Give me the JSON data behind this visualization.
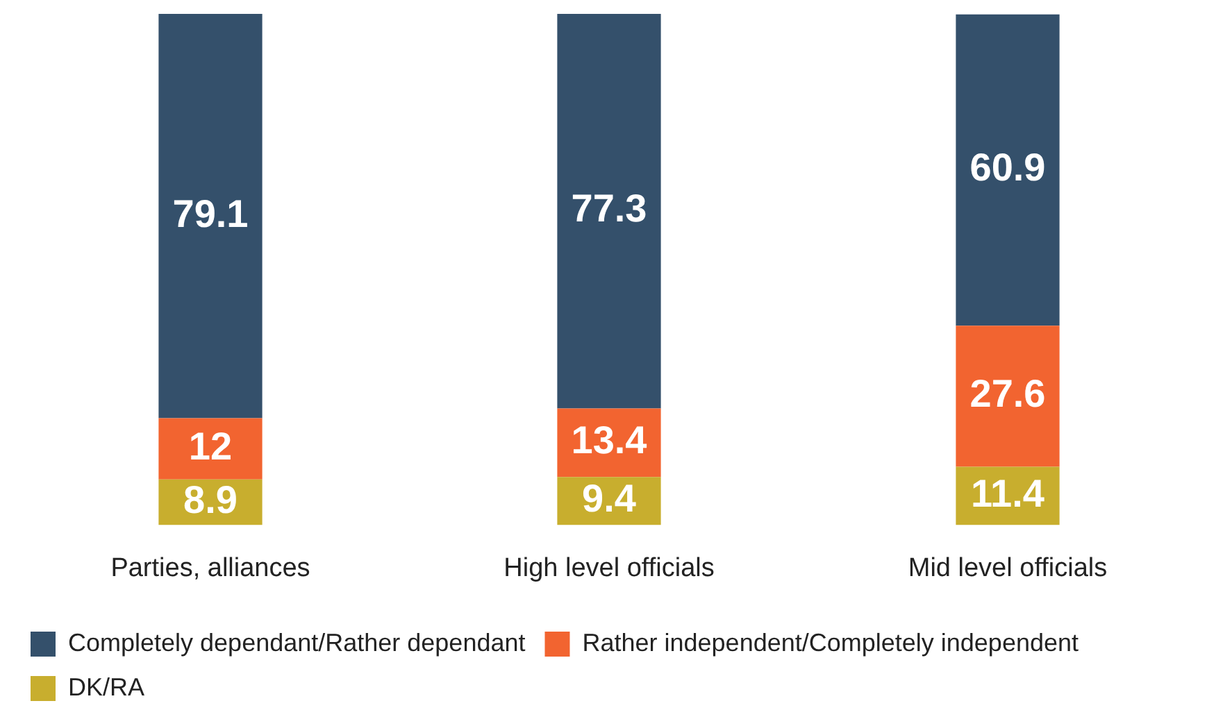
{
  "chart_data": {
    "type": "bar",
    "stacked": true,
    "categories": [
      "Parties, alliances",
      "High level officials",
      "Mid level officials"
    ],
    "series": [
      {
        "name": "DK/RA",
        "color": "#c8ae2e",
        "values": [
          8.9,
          9.4,
          11.4
        ]
      },
      {
        "name": "Rather independent/Completely independent",
        "color": "#f26430",
        "values": [
          12,
          13.4,
          27.6
        ]
      },
      {
        "name": "Completely dependant/Rather dependant",
        "color": "#34506b",
        "values": [
          79.1,
          77.3,
          60.9
        ]
      }
    ],
    "ylim": [
      0,
      100
    ],
    "tick_labels": "x",
    "grid": false,
    "legend": "bottom",
    "data_labels": true
  }
}
